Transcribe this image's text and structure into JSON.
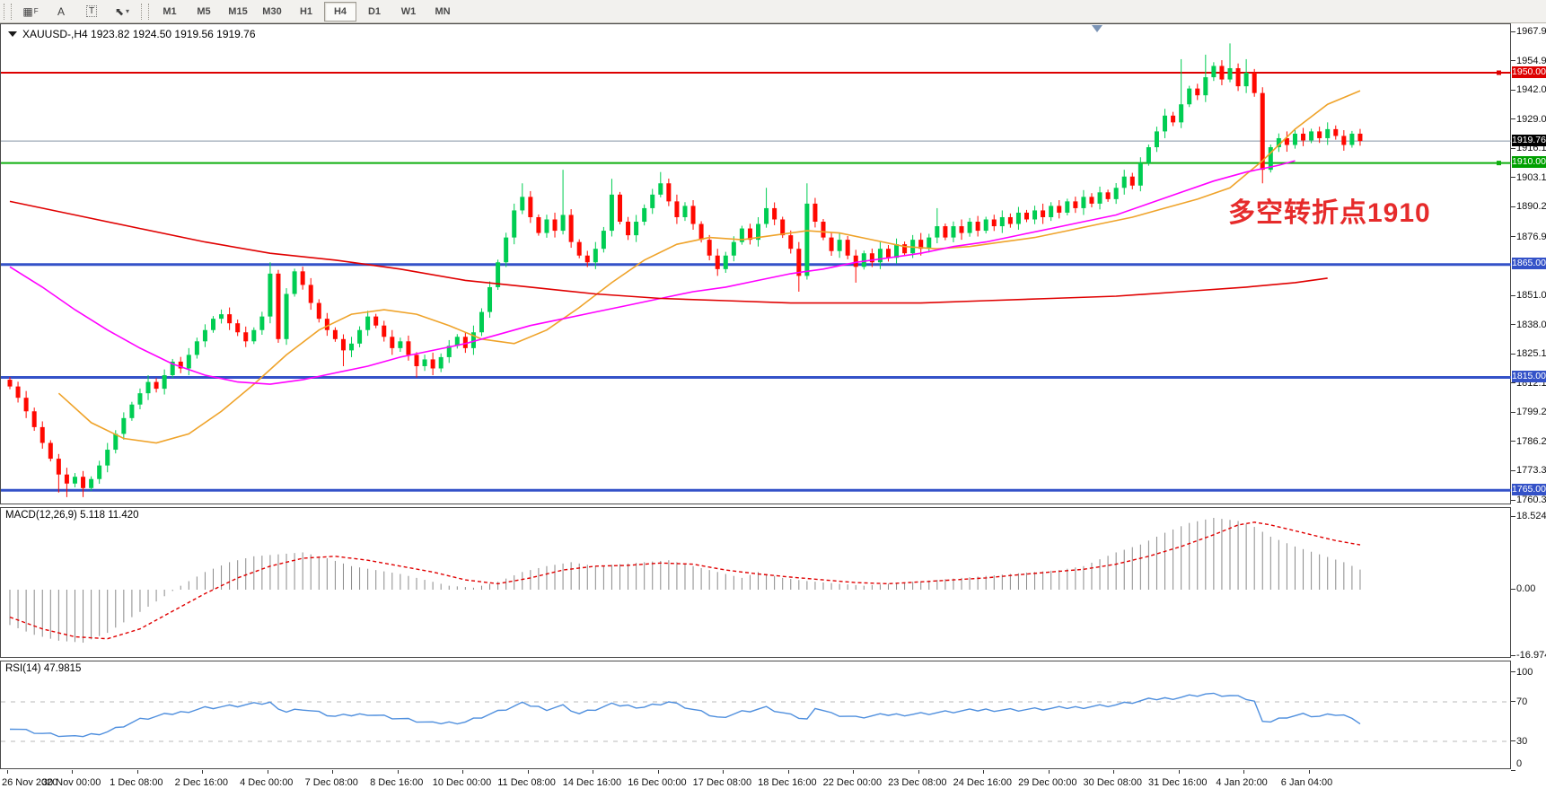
{
  "toolbar": {
    "tools": [
      {
        "name": "chart-grid-tool",
        "glyph": "▦",
        "sub": "F"
      },
      {
        "name": "text-label-tool",
        "glyph": "A",
        "sub": ""
      },
      {
        "name": "text-box-tool",
        "glyph": "T",
        "sub": ""
      },
      {
        "name": "drawing-tools-dropdown",
        "glyph": "⬉",
        "sub": "▾"
      }
    ],
    "timeframes": [
      "M1",
      "M5",
      "M15",
      "M30",
      "H1",
      "H4",
      "D1",
      "W1",
      "MN"
    ],
    "active_timeframe": "H4"
  },
  "chart": {
    "title_text": "XAUUSD-,H4  1923.82 1924.50 1919.56 1919.76",
    "symbol": "XAUUSD-",
    "timeframe": "H4",
    "open": 1923.82,
    "high": 1924.5,
    "low": 1919.56,
    "close": 1919.76
  },
  "annotation": {
    "text": "多空转折点1910",
    "color": "#e62b2b"
  },
  "axis": {
    "y_ticks": [
      1967.9,
      1954.95,
      1942.0,
      1929.05,
      1916.1,
      1903.15,
      1890.2,
      1876.9,
      1851.0,
      1838.05,
      1825.1,
      1812.15,
      1799.2,
      1786.25,
      1773.3,
      1760.35
    ],
    "x_ticks": [
      {
        "label": "26 Nov 2020",
        "bar": 0
      },
      {
        "label": "30 Nov 00:00",
        "bar": 8
      },
      {
        "label": "1 Dec 08:00",
        "bar": 16
      },
      {
        "label": "2 Dec 16:00",
        "bar": 24
      },
      {
        "label": "4 Dec 00:00",
        "bar": 32
      },
      {
        "label": "7 Dec 08:00",
        "bar": 40
      },
      {
        "label": "8 Dec 16:00",
        "bar": 48
      },
      {
        "label": "10 Dec 00:00",
        "bar": 56
      },
      {
        "label": "11 Dec 08:00",
        "bar": 64
      },
      {
        "label": "14 Dec 16:00",
        "bar": 72
      },
      {
        "label": "16 Dec 00:00",
        "bar": 80
      },
      {
        "label": "17 Dec 08:00",
        "bar": 88
      },
      {
        "label": "18 Dec 16:00",
        "bar": 96
      },
      {
        "label": "22 Dec 00:00",
        "bar": 104
      },
      {
        "label": "23 Dec 08:00",
        "bar": 112
      },
      {
        "label": "24 Dec 16:00",
        "bar": 120
      },
      {
        "label": "29 Dec 00:00",
        "bar": 128
      },
      {
        "label": "30 Dec 08:00",
        "bar": 136
      },
      {
        "label": "31 Dec 16:00",
        "bar": 144
      },
      {
        "label": "4 Jan 20:00",
        "bar": 152
      },
      {
        "label": "6 Jan 04:00",
        "bar": 160
      }
    ]
  },
  "levels": [
    {
      "price": 1950.0,
      "label": "1950.00",
      "color": "#dd0000",
      "badge": "#dd0000",
      "width": 2,
      "handle": true
    },
    {
      "price": 1910.0,
      "label": "1910.00",
      "color": "#0faf0f",
      "badge": "#00a000",
      "width": 2,
      "handle": true
    },
    {
      "price": 1865.0,
      "label": "1865.00",
      "color": "#3452c8",
      "badge": "#3452c8",
      "width": 3,
      "handle": false
    },
    {
      "price": 1815.0,
      "label": "1815.00",
      "color": "#3452c8",
      "badge": "#3452c8",
      "width": 3,
      "handle": false
    },
    {
      "price": 1765.0,
      "label": "1765.00",
      "color": "#3452c8",
      "badge": "#3452c8",
      "width": 3,
      "handle": false
    }
  ],
  "current_price": {
    "price": 1919.76,
    "label": "1919.76",
    "line_color": "#8494a4",
    "badge": "#000000"
  },
  "panels": {
    "macd": {
      "label_text": "MACD(12,26,9) 5.118 11.420",
      "y_ticks": [
        18.524,
        0.0,
        -16.974
      ]
    },
    "rsi": {
      "label_text": "RSI(14) 47.9815",
      "y_ticks": [
        100,
        70,
        30,
        0
      ],
      "dashed_levels": [
        70,
        30
      ]
    }
  },
  "colors": {
    "candle_up": "#00cd52",
    "candle_down": "#ff0800",
    "ma_fast": "#efa32a",
    "ma_mid": "#ff00ff",
    "ma_slow": "#e00000",
    "macd_hist": "#8a8a8a",
    "macd_signal": "#e00000",
    "rsi_line": "#4f8fde"
  },
  "chart_data": {
    "type": "candlestick",
    "symbol": "XAUUSD-",
    "timeframe": "H4",
    "price_range_visible": [
      1760.35,
      1967.9
    ],
    "first_open": 1814,
    "closes": [
      1811,
      1806,
      1800,
      1793,
      1786,
      1779,
      1772,
      1768,
      1771,
      1766,
      1770,
      1776,
      1783,
      1790,
      1797,
      1803,
      1808,
      1813,
      1810,
      1816,
      1822,
      1819,
      1825,
      1831,
      1836,
      1841,
      1843,
      1839,
      1835,
      1831,
      1836,
      1842,
      1861,
      1832,
      1852,
      1862,
      1856,
      1848,
      1841,
      1836,
      1832,
      1827,
      1830,
      1836,
      1842,
      1838,
      1833,
      1828,
      1831,
      1825,
      1820,
      1823,
      1819,
      1824,
      1829,
      1833,
      1828,
      1835,
      1844,
      1855,
      1866,
      1877,
      1889,
      1895,
      1886,
      1879,
      1885,
      1880,
      1887,
      1875,
      1869,
      1866,
      1872,
      1880,
      1896,
      1884,
      1878,
      1884,
      1890,
      1896,
      1901,
      1893,
      1886,
      1891,
      1883,
      1876,
      1869,
      1863,
      1869,
      1875,
      1881,
      1876,
      1883,
      1890,
      1885,
      1878,
      1872,
      1860,
      1892,
      1884,
      1877,
      1871,
      1876,
      1869,
      1864,
      1870,
      1866,
      1872,
      1868,
      1874,
      1870,
      1876,
      1872,
      1877,
      1882,
      1877,
      1882,
      1879,
      1884,
      1880,
      1885,
      1882,
      1886,
      1883,
      1888,
      1885,
      1889,
      1886,
      1891,
      1888,
      1893,
      1890,
      1895,
      1892,
      1897,
      1894,
      1899,
      1904,
      1900,
      1910,
      1917,
      1924,
      1931,
      1928,
      1936,
      1943,
      1940,
      1948,
      1953,
      1947,
      1952,
      1944,
      1950,
      1941,
      1907,
      1917,
      1921,
      1918,
      1923,
      1920,
      1924,
      1921,
      1925,
      1922,
      1918,
      1923,
      1919.76
    ],
    "high_overrides": {
      "32": 1866,
      "63": 1901,
      "68": 1907,
      "74": 1903,
      "80": 1906,
      "93": 1899,
      "98": 1901,
      "114": 1890,
      "144": 1956,
      "147": 1958,
      "150": 1963,
      "152": 1956
    },
    "low_overrides": {
      "6": 1764,
      "7": 1762,
      "9": 1762,
      "41": 1820,
      "50": 1815,
      "97": 1853,
      "104": 1857,
      "154": 1901
    },
    "ma_fast_points": [
      [
        6,
        1808
      ],
      [
        10,
        1795
      ],
      [
        14,
        1788
      ],
      [
        18,
        1786
      ],
      [
        22,
        1790
      ],
      [
        26,
        1800
      ],
      [
        30,
        1812
      ],
      [
        34,
        1825
      ],
      [
        38,
        1836
      ],
      [
        42,
        1843
      ],
      [
        46,
        1845
      ],
      [
        50,
        1843
      ],
      [
        54,
        1838
      ],
      [
        58,
        1832
      ],
      [
        62,
        1830
      ],
      [
        66,
        1836
      ],
      [
        70,
        1846
      ],
      [
        74,
        1857
      ],
      [
        78,
        1867
      ],
      [
        82,
        1874
      ],
      [
        86,
        1877
      ],
      [
        90,
        1876
      ],
      [
        94,
        1878
      ],
      [
        98,
        1880
      ],
      [
        102,
        1879
      ],
      [
        106,
        1876
      ],
      [
        110,
        1873
      ],
      [
        114,
        1872
      ],
      [
        118,
        1873
      ],
      [
        122,
        1875
      ],
      [
        126,
        1877
      ],
      [
        130,
        1880
      ],
      [
        134,
        1883
      ],
      [
        138,
        1886
      ],
      [
        142,
        1890
      ],
      [
        146,
        1894
      ],
      [
        150,
        1899
      ],
      [
        154,
        1911
      ],
      [
        158,
        1925
      ],
      [
        162,
        1936
      ],
      [
        166,
        1942
      ]
    ],
    "ma_mid_points": [
      [
        0,
        1864
      ],
      [
        4,
        1855
      ],
      [
        8,
        1845
      ],
      [
        12,
        1836
      ],
      [
        16,
        1828
      ],
      [
        20,
        1821
      ],
      [
        24,
        1816
      ],
      [
        28,
        1813
      ],
      [
        32,
        1812
      ],
      [
        36,
        1814
      ],
      [
        40,
        1817
      ],
      [
        44,
        1820
      ],
      [
        48,
        1824
      ],
      [
        52,
        1827
      ],
      [
        56,
        1830
      ],
      [
        60,
        1834
      ],
      [
        64,
        1838
      ],
      [
        68,
        1841
      ],
      [
        72,
        1844
      ],
      [
        76,
        1847
      ],
      [
        80,
        1850
      ],
      [
        84,
        1853
      ],
      [
        88,
        1855
      ],
      [
        92,
        1858
      ],
      [
        96,
        1861
      ],
      [
        100,
        1863
      ],
      [
        104,
        1866
      ],
      [
        108,
        1868
      ],
      [
        112,
        1870
      ],
      [
        116,
        1873
      ],
      [
        120,
        1875
      ],
      [
        124,
        1878
      ],
      [
        128,
        1881
      ],
      [
        132,
        1884
      ],
      [
        136,
        1887
      ],
      [
        140,
        1892
      ],
      [
        144,
        1897
      ],
      [
        148,
        1902
      ],
      [
        152,
        1906
      ],
      [
        156,
        1909
      ],
      [
        158,
        1911
      ]
    ],
    "ma_slow_points": [
      [
        0,
        1893
      ],
      [
        8,
        1887
      ],
      [
        16,
        1881
      ],
      [
        24,
        1875
      ],
      [
        32,
        1870
      ],
      [
        40,
        1867
      ],
      [
        48,
        1863
      ],
      [
        56,
        1858
      ],
      [
        64,
        1855
      ],
      [
        72,
        1852
      ],
      [
        80,
        1850
      ],
      [
        88,
        1849
      ],
      [
        96,
        1848
      ],
      [
        104,
        1848
      ],
      [
        112,
        1848
      ],
      [
        120,
        1849
      ],
      [
        128,
        1850
      ],
      [
        136,
        1851
      ],
      [
        144,
        1853
      ],
      [
        152,
        1855
      ],
      [
        158,
        1857
      ],
      [
        162,
        1859
      ]
    ],
    "macd": {
      "params": "12,26,9",
      "main_value": 5.118,
      "signal_value": 11.42,
      "ylim": [
        -16.974,
        18.524
      ],
      "main_points": [
        [
          0,
          -9
        ],
        [
          3,
          -11.5
        ],
        [
          6,
          -13
        ],
        [
          9,
          -13.5
        ],
        [
          12,
          -11
        ],
        [
          15,
          -7
        ],
        [
          18,
          -3
        ],
        [
          21,
          1
        ],
        [
          24,
          4.5
        ],
        [
          27,
          7
        ],
        [
          30,
          8.5
        ],
        [
          33,
          9
        ],
        [
          36,
          9.5
        ],
        [
          39,
          8
        ],
        [
          42,
          6
        ],
        [
          45,
          5
        ],
        [
          48,
          4
        ],
        [
          51,
          2.5
        ],
        [
          54,
          1
        ],
        [
          57,
          0.5
        ],
        [
          60,
          2
        ],
        [
          63,
          4.5
        ],
        [
          66,
          6
        ],
        [
          69,
          7
        ],
        [
          72,
          6
        ],
        [
          75,
          6.5
        ],
        [
          78,
          7
        ],
        [
          81,
          7.5
        ],
        [
          84,
          6
        ],
        [
          87,
          4.5
        ],
        [
          90,
          3
        ],
        [
          92,
          4.5
        ],
        [
          95,
          3
        ],
        [
          98,
          2.2
        ],
        [
          102,
          1.5
        ],
        [
          105,
          1
        ],
        [
          108,
          1.5
        ],
        [
          111,
          2
        ],
        [
          114,
          2.5
        ],
        [
          117,
          3
        ],
        [
          120,
          3.5
        ],
        [
          123,
          4
        ],
        [
          126,
          4.5
        ],
        [
          129,
          5
        ],
        [
          132,
          6
        ],
        [
          136,
          9.5
        ],
        [
          139,
          11.5
        ],
        [
          142,
          14.5
        ],
        [
          145,
          17
        ],
        [
          148,
          18.3
        ],
        [
          151,
          17.5
        ],
        [
          153,
          16
        ],
        [
          155,
          13.5
        ],
        [
          158,
          11
        ],
        [
          161,
          9
        ],
        [
          164,
          7
        ],
        [
          166,
          5.118
        ]
      ],
      "signal_points": [
        [
          0,
          -7
        ],
        [
          4,
          -10
        ],
        [
          8,
          -12
        ],
        [
          12,
          -12.5
        ],
        [
          16,
          -10
        ],
        [
          20,
          -5.5
        ],
        [
          24,
          -1
        ],
        [
          28,
          3
        ],
        [
          32,
          6
        ],
        [
          36,
          8
        ],
        [
          40,
          8.5
        ],
        [
          44,
          7.5
        ],
        [
          48,
          6
        ],
        [
          52,
          4.5
        ],
        [
          56,
          2.5
        ],
        [
          60,
          1.5
        ],
        [
          64,
          3
        ],
        [
          68,
          5
        ],
        [
          72,
          6
        ],
        [
          76,
          6.2
        ],
        [
          80,
          6.8
        ],
        [
          84,
          6.5
        ],
        [
          88,
          5
        ],
        [
          92,
          4
        ],
        [
          96,
          3.2
        ],
        [
          100,
          2.5
        ],
        [
          104,
          1.8
        ],
        [
          108,
          1.5
        ],
        [
          112,
          2
        ],
        [
          116,
          2.5
        ],
        [
          120,
          3
        ],
        [
          124,
          3.8
        ],
        [
          128,
          4.5
        ],
        [
          132,
          5.2
        ],
        [
          136,
          6.5
        ],
        [
          140,
          8.5
        ],
        [
          144,
          11
        ],
        [
          148,
          14
        ],
        [
          151,
          16.5
        ],
        [
          153,
          17.2
        ],
        [
          155,
          16.5
        ],
        [
          157,
          15.5
        ],
        [
          159,
          14.5
        ],
        [
          161,
          13.5
        ],
        [
          163,
          12.5
        ],
        [
          166,
          11.42
        ]
      ]
    },
    "rsi": {
      "period": 14,
      "value": 47.9815,
      "ylim": [
        0,
        100
      ],
      "points": [
        [
          0,
          44
        ],
        [
          4,
          38
        ],
        [
          8,
          34
        ],
        [
          12,
          40
        ],
        [
          16,
          52
        ],
        [
          20,
          58
        ],
        [
          24,
          64
        ],
        [
          28,
          66
        ],
        [
          32,
          69
        ],
        [
          34,
          60
        ],
        [
          36,
          63
        ],
        [
          40,
          55
        ],
        [
          44,
          58
        ],
        [
          48,
          53
        ],
        [
          52,
          48
        ],
        [
          56,
          50
        ],
        [
          60,
          60
        ],
        [
          63,
          68
        ],
        [
          66,
          63
        ],
        [
          68,
          66
        ],
        [
          70,
          58
        ],
        [
          74,
          67
        ],
        [
          78,
          65
        ],
        [
          81,
          70
        ],
        [
          84,
          62
        ],
        [
          87,
          54
        ],
        [
          90,
          60
        ],
        [
          93,
          64
        ],
        [
          96,
          56
        ],
        [
          98,
          52
        ],
        [
          99,
          65
        ],
        [
          101,
          58
        ],
        [
          104,
          54
        ],
        [
          108,
          57
        ],
        [
          112,
          58
        ],
        [
          116,
          60
        ],
        [
          120,
          62
        ],
        [
          124,
          62
        ],
        [
          128,
          63
        ],
        [
          132,
          65
        ],
        [
          136,
          67
        ],
        [
          140,
          72
        ],
        [
          144,
          75
        ],
        [
          147,
          78
        ],
        [
          150,
          76
        ],
        [
          152,
          73
        ],
        [
          153,
          70
        ],
        [
          154,
          52
        ],
        [
          155,
          50
        ],
        [
          157,
          55
        ],
        [
          159,
          57
        ],
        [
          161,
          55
        ],
        [
          163,
          57
        ],
        [
          165,
          55
        ],
        [
          166,
          48
        ]
      ]
    }
  }
}
